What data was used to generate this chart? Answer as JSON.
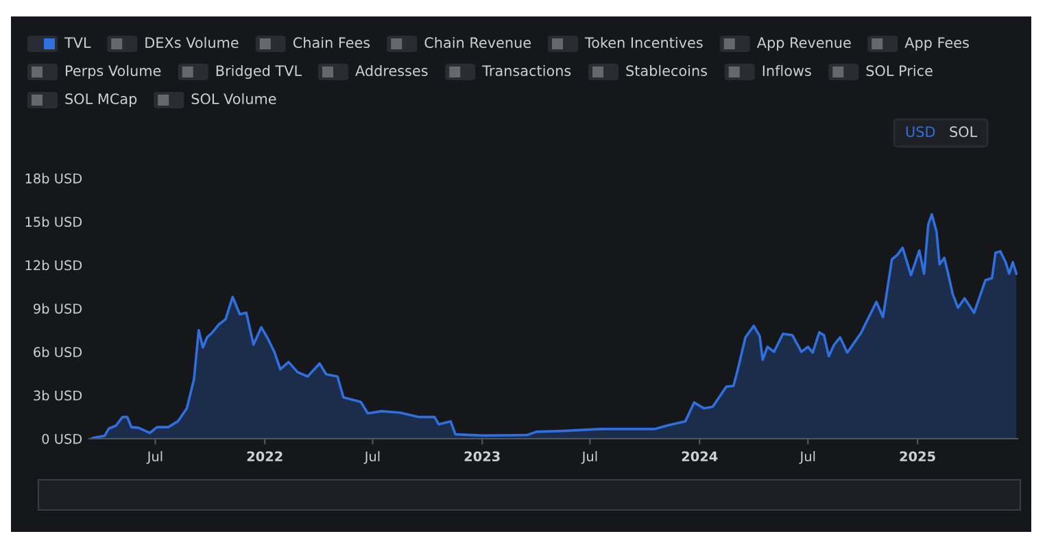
{
  "chart_data": {
    "type": "area",
    "x": [
      "2021-03-18",
      "2021-04-07",
      "2021-04-14",
      "2021-04-26",
      "2021-05-07",
      "2021-05-15",
      "2021-05-22",
      "2021-06-03",
      "2021-06-22",
      "2021-07-04",
      "2021-07-23",
      "2021-08-08",
      "2021-08-23",
      "2021-09-04",
      "2021-09-12",
      "2021-09-19",
      "2021-09-26",
      "2021-10-04",
      "2021-10-16",
      "2021-10-27",
      "2021-11-08",
      "2021-11-20",
      "2021-12-01",
      "2021-12-13",
      "2021-12-26",
      "2022-01-05",
      "2022-01-17",
      "2022-01-27",
      "2022-02-10",
      "2022-02-25",
      "2022-03-14",
      "2022-04-03",
      "2022-04-14",
      "2022-05-03",
      "2022-05-13",
      "2022-06-11",
      "2022-06-23",
      "2022-07-16",
      "2022-08-16",
      "2022-09-16",
      "2022-10-13",
      "2022-10-20",
      "2022-11-09",
      "2022-11-17",
      "2023-01-02",
      "2023-03-17",
      "2023-04-02",
      "2023-05-18",
      "2023-07-18",
      "2023-10-18",
      "2023-11-11",
      "2023-12-08",
      "2023-12-23",
      "2024-01-08",
      "2024-01-23",
      "2024-02-15",
      "2024-02-27",
      "2024-03-05",
      "2024-03-18",
      "2024-04-01",
      "2024-04-11",
      "2024-04-16",
      "2024-04-24",
      "2024-05-05",
      "2024-05-20",
      "2024-06-05",
      "2024-06-20",
      "2024-07-01",
      "2024-07-09",
      "2024-07-20",
      "2024-07-28",
      "2024-08-05",
      "2024-08-14",
      "2024-08-24",
      "2024-09-05",
      "2024-09-28",
      "2024-10-13",
      "2024-10-24",
      "2024-11-04",
      "2024-11-19",
      "2024-11-28",
      "2024-12-07",
      "2024-12-21",
      "2025-01-04",
      "2025-01-12",
      "2025-01-19",
      "2025-01-25",
      "2025-02-02",
      "2025-02-07",
      "2025-02-15",
      "2025-02-22",
      "2025-03-01",
      "2025-03-10",
      "2025-03-21",
      "2025-04-06",
      "2025-04-25",
      "2025-05-06",
      "2025-05-12",
      "2025-05-20",
      "2025-05-29",
      "2025-06-04",
      "2025-06-10",
      "2025-06-16"
    ],
    "series": [
      {
        "name": "TVL",
        "color": "#2f6fde",
        "values": [
          0.05,
          0.2,
          0.7,
          0.9,
          1.5,
          1.5,
          0.8,
          0.75,
          0.4,
          0.8,
          0.8,
          1.2,
          2.1,
          4.1,
          7.5,
          6.3,
          7.0,
          7.3,
          7.9,
          8.25,
          9.8,
          8.6,
          8.7,
          6.5,
          7.7,
          7.0,
          6.0,
          4.8,
          5.3,
          4.6,
          4.3,
          5.2,
          4.45,
          4.3,
          2.85,
          2.55,
          1.75,
          1.9,
          1.8,
          1.5,
          1.5,
          1.0,
          1.2,
          0.3,
          0.22,
          0.25,
          0.48,
          0.54,
          0.67,
          0.67,
          0.95,
          1.2,
          2.5,
          2.1,
          2.2,
          3.6,
          3.65,
          4.75,
          7.0,
          7.8,
          7.1,
          5.45,
          6.35,
          6.0,
          7.25,
          7.15,
          6.0,
          6.35,
          5.95,
          7.35,
          7.15,
          5.7,
          6.5,
          7.0,
          5.95,
          7.3,
          8.55,
          9.45,
          8.4,
          12.4,
          12.7,
          13.2,
          11.3,
          13.0,
          11.4,
          14.8,
          15.5,
          14.3,
          12.05,
          12.5,
          11.3,
          10.0,
          9.05,
          9.7,
          8.7,
          10.95,
          11.1,
          12.85,
          12.95,
          12.2,
          11.4,
          12.2,
          11.4
        ]
      }
    ],
    "xlim": [
      "2021-03-12",
      "2025-06-18"
    ],
    "xticks": [
      {
        "value": "2021-07-01",
        "label": "Jul"
      },
      {
        "value": "2022-01-01",
        "label": "2022"
      },
      {
        "value": "2022-07-01",
        "label": "Jul"
      },
      {
        "value": "2023-01-01",
        "label": "2023"
      },
      {
        "value": "2023-07-01",
        "label": "Jul"
      },
      {
        "value": "2024-01-01",
        "label": "2024"
      },
      {
        "value": "2024-07-01",
        "label": "Jul"
      },
      {
        "value": "2025-01-01",
        "label": "2025"
      }
    ],
    "ylim": [
      0,
      18
    ],
    "yticks": [
      {
        "value": 0,
        "label": "0 USD"
      },
      {
        "value": 3,
        "label": "3b USD"
      },
      {
        "value": 6,
        "label": "6b USD"
      },
      {
        "value": 9,
        "label": "9b USD"
      },
      {
        "value": 12,
        "label": "12b USD"
      },
      {
        "value": 15,
        "label": "15b USD"
      },
      {
        "value": 18,
        "label": "18b USD"
      }
    ],
    "grid": false,
    "legend": "top left",
    "annotations": [
      "DEXs Volume",
      "Chain Fees",
      "Chain Revenue",
      "Token Incentives",
      "App Revenue",
      "App Fees",
      "Perps Volume",
      "Bridged TVL",
      "Addresses",
      "Transactions",
      "Stablecoins",
      "Inflows",
      "SOL Price",
      "SOL MCap",
      "SOL Volume",
      "USD",
      "SOL"
    ]
  }
}
